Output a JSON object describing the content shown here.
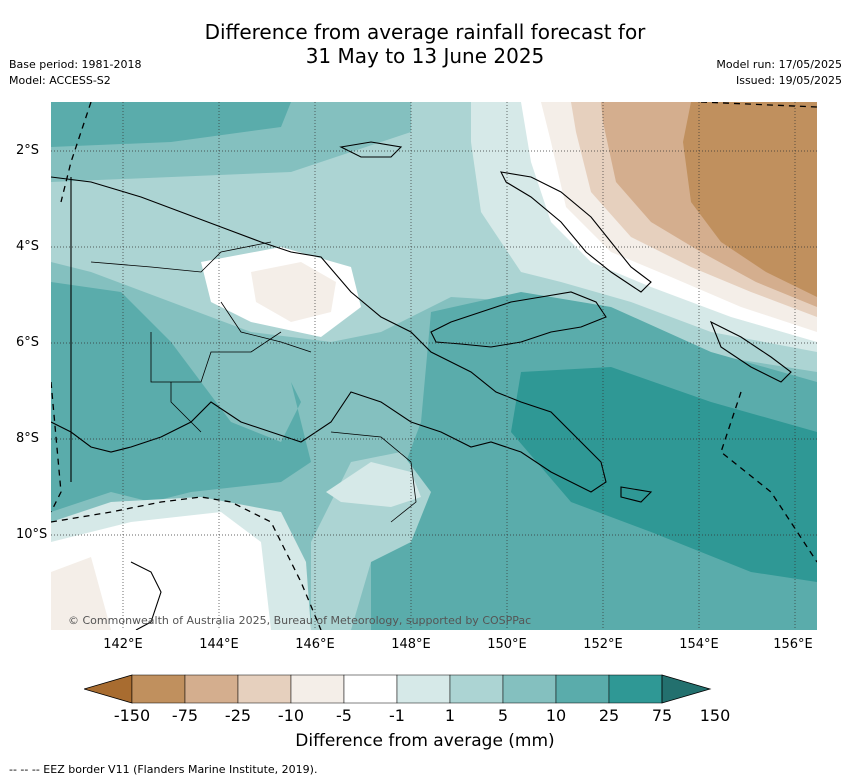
{
  "header": {
    "title_line1": "Difference from average rainfall forecast for",
    "title_line2": "31 May to 13 June 2025",
    "base_period": "Base period: 1981-2018",
    "model": "Model: ACCESS-S2",
    "model_run": "Model run: 17/05/2025",
    "issued": "Issued: 19/05/2025"
  },
  "map": {
    "copyright": "© Commonwealth of Australia 2025, Bureau of Meteorology, supported by COSPPac",
    "x_ticks": [
      "142°E",
      "144°E",
      "146°E",
      "148°E",
      "150°E",
      "152°E",
      "154°E",
      "156°E"
    ],
    "y_ticks": [
      "2°S",
      "4°S",
      "6°S",
      "8°S",
      "10°S"
    ]
  },
  "legend": {
    "boundaries": [
      "-150",
      "-75",
      "-25",
      "-10",
      "-5",
      "-1",
      "1",
      "5",
      "10",
      "25",
      "75",
      "150"
    ],
    "colors": [
      "#a86c30",
      "#c0905e",
      "#d4ae8e",
      "#e6d0be",
      "#f4eee8",
      "#ffffff",
      "#d6e9e8",
      "#acd4d3",
      "#84c0bf",
      "#5aacab",
      "#2f9895",
      "#23706e"
    ],
    "label": "Difference from average (mm)"
  },
  "footer": {
    "eez_note": "--  --  -- EEZ border V11 (Flanders Marine Institute, 2019)."
  }
}
